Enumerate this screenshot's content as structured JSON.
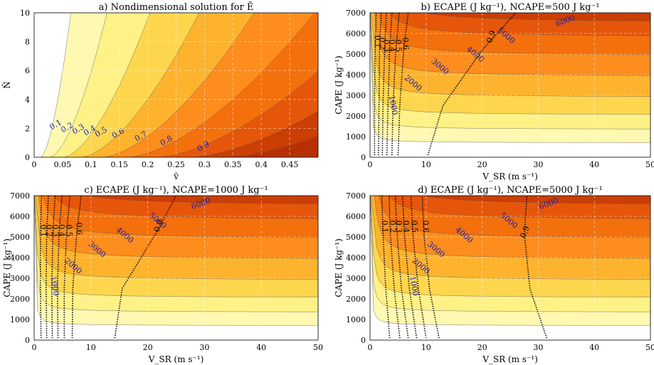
{
  "palette": [
    "#ffffff",
    "#fffde6",
    "#fff8b0",
    "#fef186",
    "#fed64e",
    "#fdb32d",
    "#fd8d1d",
    "#f3700d",
    "#e6560a",
    "#cb3e04",
    "#b73003"
  ],
  "chart_data": [
    {
      "type": "contour",
      "title": "a) Nondimensional solution for Ẽ",
      "xlabel": "ṽ",
      "ylabel": "Ñ",
      "xlim": [
        0,
        0.5
      ],
      "ylim": [
        0,
        10
      ],
      "xticks": [
        "0",
        "0.05",
        "0.1",
        "0.15",
        "0.2",
        "0.25",
        "0.3",
        "0.35",
        "0.4",
        "0.45"
      ],
      "yticks": [
        "0",
        "2",
        "4",
        "6",
        "8",
        "10"
      ],
      "grid": true,
      "filled_levels": [
        0.1,
        0.2,
        0.3,
        0.4,
        0.5,
        0.6,
        0.7,
        0.8,
        0.9
      ],
      "contour_labels": [
        {
          "text": "0.1",
          "x": 0.04,
          "y": 2.1
        },
        {
          "text": "0.2",
          "x": 0.06,
          "y": 1.9
        },
        {
          "text": "0.3",
          "x": 0.08,
          "y": 1.8
        },
        {
          "text": "0.4",
          "x": 0.1,
          "y": 1.7
        },
        {
          "text": "0.5",
          "x": 0.12,
          "y": 1.6
        },
        {
          "text": "0.6",
          "x": 0.15,
          "y": 1.5
        },
        {
          "text": "0.7",
          "x": 0.19,
          "y": 1.3
        },
        {
          "text": "0.8",
          "x": 0.235,
          "y": 1.0
        },
        {
          "text": "0.9",
          "x": 0.3,
          "y": 0.6
        }
      ]
    },
    {
      "type": "contour",
      "title": "b) ECAPE (J kg⁻¹), NCAPE=500 J kg⁻¹",
      "xlabel": "V_SR (m s⁻¹)",
      "ylabel": "CAPE (J kg⁻¹)",
      "xlim": [
        0,
        50
      ],
      "ylim": [
        0,
        7000
      ],
      "xticks": [
        "0",
        "10",
        "20",
        "30",
        "40",
        "50"
      ],
      "yticks": [
        "0",
        "1000",
        "2000",
        "3000",
        "4000",
        "5000",
        "6000",
        "7000"
      ],
      "grid": true,
      "ecape_levels": [
        1000,
        2000,
        3000,
        4000,
        5000,
        6000
      ],
      "ecape_labels": [
        {
          "text": "1000",
          "x": 3.7,
          "y": 2500
        },
        {
          "text": "2000",
          "x": 7.4,
          "y": 3500
        },
        {
          "text": "3000",
          "x": 12.2,
          "y": 4300
        },
        {
          "text": "4000",
          "x": 18.5,
          "y": 4900
        },
        {
          "text": "5000",
          "x": 24,
          "y": 5800
        },
        {
          "text": "6000",
          "x": 35,
          "y": 6500
        }
      ],
      "ratio_lines": [
        {
          "label": "0.1",
          "x": [
            0.8,
            0.8,
            0.9,
            1.1
          ],
          "y": [
            100,
            2500,
            5200,
            7000
          ],
          "lx": 0.9,
          "ly": 5600
        },
        {
          "label": "0.2",
          "x": [
            1.5,
            1.6,
            1.7,
            2
          ],
          "y": [
            100,
            2500,
            5200,
            7000
          ],
          "lx": 1.7,
          "ly": 5500
        },
        {
          "label": "0.3",
          "x": [
            2.2,
            2.3,
            2.6,
            2.9
          ],
          "y": [
            100,
            2500,
            5200,
            7000
          ],
          "lx": 2.5,
          "ly": 5400
        },
        {
          "label": "0.4",
          "x": [
            3,
            3.2,
            3.5,
            3.9
          ],
          "y": [
            100,
            2500,
            5200,
            7000
          ],
          "lx": 3.5,
          "ly": 5400
        },
        {
          "label": "0.5",
          "x": [
            3.9,
            4.1,
            4.6,
            5.2
          ],
          "y": [
            100,
            2500,
            5200,
            7000
          ],
          "lx": 4.6,
          "ly": 5400
        },
        {
          "label": "0.6",
          "x": [
            5,
            5.3,
            6,
            6.8
          ],
          "y": [
            100,
            2500,
            5200,
            7000
          ],
          "lx": 5.9,
          "ly": 5500
        },
        {
          "label": "0.9",
          "x": [
            10.3,
            13,
            20,
            26
          ],
          "y": [
            100,
            2500,
            5200,
            7000
          ],
          "lx": 22,
          "ly": 5800
        }
      ]
    },
    {
      "type": "contour",
      "title": "c) ECAPE (J kg⁻¹), NCAPE=1000 J kg⁻¹",
      "xlabel": "V_SR (m s⁻¹)",
      "ylabel": "CAPE (J kg⁻¹)",
      "xlim": [
        0,
        50
      ],
      "ylim": [
        0,
        7000
      ],
      "xticks": [
        "0",
        "10",
        "20",
        "30",
        "40",
        "50"
      ],
      "yticks": [
        "0",
        "1000",
        "2000",
        "3000",
        "4000",
        "5000",
        "6000",
        "7000"
      ],
      "grid": true,
      "ecape_levels": [
        1000,
        2000,
        3000,
        4000,
        5000,
        6000
      ],
      "ecape_labels": [
        {
          "text": "1000",
          "x": 3.2,
          "y": 2600
        },
        {
          "text": "2000",
          "x": 6.6,
          "y": 3500
        },
        {
          "text": "3000",
          "x": 10.8,
          "y": 4300
        },
        {
          "text": "4000",
          "x": 15.7,
          "y": 5000
        },
        {
          "text": "5000",
          "x": 21.5,
          "y": 5700
        },
        {
          "text": "6000",
          "x": 29.5,
          "y": 6500
        }
      ],
      "ratio_lines": [
        {
          "label": "0.1",
          "x": [
            1.2,
            1.1,
            1.1,
            1.3
          ],
          "y": [
            100,
            2500,
            5200,
            7000
          ],
          "lx": 1.2,
          "ly": 5300
        },
        {
          "label": "0.2",
          "x": [
            2.2,
            2.1,
            2.2,
            2.5
          ],
          "y": [
            100,
            2500,
            5200,
            7000
          ],
          "lx": 2.2,
          "ly": 5300
        },
        {
          "label": "0.3",
          "x": [
            3.2,
            3.1,
            3.3,
            3.7
          ],
          "y": [
            100,
            2500,
            5200,
            7000
          ],
          "lx": 3.3,
          "ly": 5300
        },
        {
          "label": "0.4",
          "x": [
            4.2,
            4.1,
            4.4,
            4.9
          ],
          "y": [
            100,
            2500,
            5200,
            7000
          ],
          "lx": 4.4,
          "ly": 5300
        },
        {
          "label": "0.5",
          "x": [
            5.3,
            5.3,
            5.7,
            6.3
          ],
          "y": [
            100,
            2500,
            5200,
            7000
          ],
          "lx": 5.7,
          "ly": 5300
        },
        {
          "label": "0.6",
          "x": [
            6.7,
            6.8,
            7.5,
            8.3
          ],
          "y": [
            100,
            2500,
            5200,
            7000
          ],
          "lx": 7.5,
          "ly": 5400
        },
        {
          "label": "0.9",
          "x": [
            14.2,
            15.5,
            21.5,
            25
          ],
          "y": [
            100,
            2500,
            5200,
            7000
          ],
          "lx": 22.3,
          "ly": 5500
        }
      ]
    },
    {
      "type": "contour",
      "title": "d) ECAPE (J kg⁻¹), NCAPE=5000 J kg⁻¹",
      "xlabel": "V_SR (m s⁻¹)",
      "ylabel": "CAPE (J kg⁻¹)",
      "xlim": [
        0,
        50
      ],
      "ylim": [
        0,
        7000
      ],
      "xticks": [
        "0",
        "10",
        "20",
        "30",
        "40",
        "50"
      ],
      "yticks": [
        "0",
        "1000",
        "2000",
        "3000",
        "4000",
        "5000",
        "6000",
        "7000"
      ],
      "grid": true,
      "ecape_levels": [
        1000,
        2000,
        3000,
        4000,
        5000,
        6000
      ],
      "ecape_labels": [
        {
          "text": "1000",
          "x": 7.4,
          "y": 2600
        },
        {
          "text": "2000",
          "x": 8.8,
          "y": 3500
        },
        {
          "text": "3000",
          "x": 11.5,
          "y": 4300
        },
        {
          "text": "4000",
          "x": 16.5,
          "y": 5000
        },
        {
          "text": "5000",
          "x": 24.5,
          "y": 5700
        },
        {
          "text": "6000",
          "x": 32,
          "y": 6500
        }
      ],
      "ratio_lines": [
        {
          "label": "0.1",
          "x": [
            3.5,
            2.8,
            2.3,
            2.1
          ],
          "y": [
            100,
            2500,
            5200,
            7000
          ],
          "lx": 2.2,
          "ly": 5500
        },
        {
          "label": "0.2",
          "x": [
            5.3,
            4.3,
            3.6,
            3.4
          ],
          "y": [
            100,
            2500,
            5200,
            7000
          ],
          "lx": 3.6,
          "ly": 5500
        },
        {
          "label": "0.3",
          "x": [
            6.8,
            5.6,
            4.8,
            4.5
          ],
          "y": [
            100,
            2500,
            5200,
            7000
          ],
          "lx": 4.7,
          "ly": 5500
        },
        {
          "label": "0.4",
          "x": [
            8.3,
            7,
            6.1,
            5.8
          ],
          "y": [
            100,
            2500,
            5200,
            7000
          ],
          "lx": 6,
          "ly": 5500
        },
        {
          "label": "0.5",
          "x": [
            10,
            8.6,
            7.6,
            7.3
          ],
          "y": [
            100,
            2500,
            5200,
            7000
          ],
          "lx": 7.5,
          "ly": 5500
        },
        {
          "label": "0.6",
          "x": [
            12.3,
            10.6,
            9.6,
            9.3
          ],
          "y": [
            100,
            2500,
            5200,
            7000
          ],
          "lx": 9.5,
          "ly": 5500
        },
        {
          "label": "0.9",
          "x": [
            31.5,
            28.5,
            27.5,
            28
          ],
          "y": [
            100,
            2500,
            5200,
            7000
          ],
          "lx": 28,
          "ly": 5200
        }
      ]
    }
  ]
}
